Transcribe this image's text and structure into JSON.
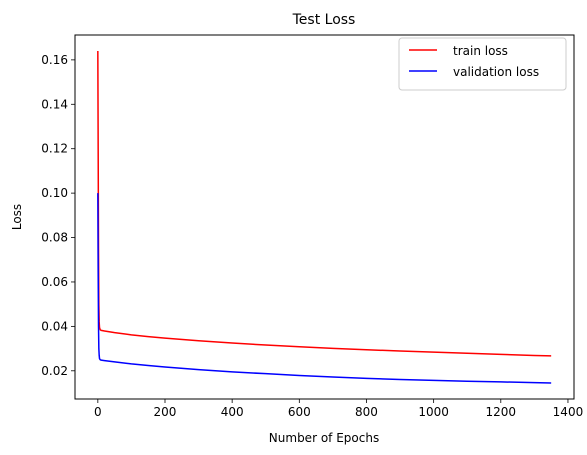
{
  "chart_data": {
    "type": "line",
    "title": "Test Loss",
    "xlabel": "Number of Epochs",
    "ylabel": "Loss",
    "xlim": [
      -68,
      1418
    ],
    "ylim": [
      0.0073,
      0.1712
    ],
    "xticks": [
      0,
      200,
      400,
      600,
      800,
      1000,
      1200,
      1400
    ],
    "yticks": [
      0.02,
      0.04,
      0.06,
      0.08,
      0.1,
      0.12,
      0.14,
      0.16
    ],
    "ytick_labels": [
      "0.02",
      "0.04",
      "0.06",
      "0.08",
      "0.10",
      "0.12",
      "0.14",
      "0.16"
    ],
    "legend_position": "top-right",
    "grid": false,
    "series": [
      {
        "name": "train loss",
        "color": "#ff0000",
        "x": [
          0,
          1,
          2,
          3,
          4,
          5,
          7,
          10,
          20,
          50,
          100,
          150,
          200,
          300,
          400,
          500,
          600,
          700,
          800,
          900,
          1000,
          1100,
          1200,
          1300,
          1350
        ],
        "y": [
          0.164,
          0.12,
          0.075,
          0.05,
          0.042,
          0.0395,
          0.0385,
          0.0382,
          0.0379,
          0.0372,
          0.0362,
          0.0354,
          0.0347,
          0.0335,
          0.0325,
          0.0316,
          0.0308,
          0.0301,
          0.0295,
          0.0289,
          0.0284,
          0.0279,
          0.0274,
          0.0269,
          0.0267
        ]
      },
      {
        "name": "validation loss",
        "color": "#0000ff",
        "x": [
          0,
          1,
          2,
          3,
          4,
          5,
          7,
          10,
          20,
          50,
          100,
          150,
          200,
          300,
          400,
          500,
          600,
          700,
          800,
          900,
          1000,
          1100,
          1200,
          1300,
          1350
        ],
        "y": [
          0.1,
          0.065,
          0.04,
          0.03,
          0.027,
          0.0255,
          0.025,
          0.0248,
          0.0246,
          0.024,
          0.0231,
          0.0224,
          0.0217,
          0.0205,
          0.0195,
          0.0187,
          0.0179,
          0.0172,
          0.0166,
          0.0161,
          0.0157,
          0.0153,
          0.015,
          0.0147,
          0.0145
        ]
      }
    ]
  }
}
